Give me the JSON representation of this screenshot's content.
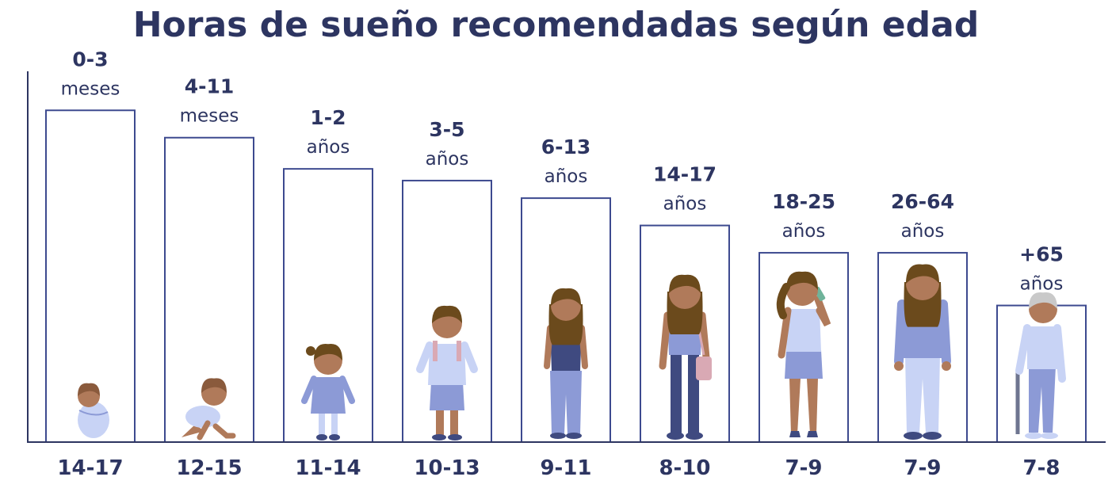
{
  "title": "Horas de sueño recomendadas según edad",
  "colors": {
    "text": "#2d3561",
    "bar_stroke": "#3d4a8f",
    "axis": "#2d3561",
    "skin": "#b07a5a",
    "hair": "#6b4a1c",
    "blue_light": "#c8d3f5",
    "blue_mid": "#8c9ad6",
    "blue_dark": "#3f4a80",
    "pink": "#d9a9b4",
    "gray_hair": "#c9c9c9"
  },
  "chart_data": {
    "type": "bar",
    "title": "Horas de sueño recomendadas según edad",
    "categories": [
      {
        "range": "0-3",
        "unit": "meses"
      },
      {
        "range": "4-11",
        "unit": "meses"
      },
      {
        "range": "1-2",
        "unit": "años"
      },
      {
        "range": "3-5",
        "unit": "años"
      },
      {
        "range": "6-13",
        "unit": "años"
      },
      {
        "range": "14-17",
        "unit": "años"
      },
      {
        "range": "18-25",
        "unit": "años"
      },
      {
        "range": "26-64",
        "unit": "años"
      },
      {
        "range": "+65",
        "unit": "años"
      }
    ],
    "hour_labels": [
      "14-17",
      "12-15",
      "11-14",
      "10-13",
      "9-11",
      "8-10",
      "7-9",
      "7-9",
      "7-8"
    ],
    "values": [
      17,
      15.6,
      14,
      13.4,
      12.5,
      11.1,
      9.7,
      9.7,
      7
    ],
    "ylim": [
      0,
      19
    ],
    "grid": false,
    "figures": [
      "baby-swaddled",
      "baby-crawling",
      "toddler",
      "preschooler",
      "child",
      "teen",
      "young-adult",
      "adult",
      "senior"
    ]
  }
}
